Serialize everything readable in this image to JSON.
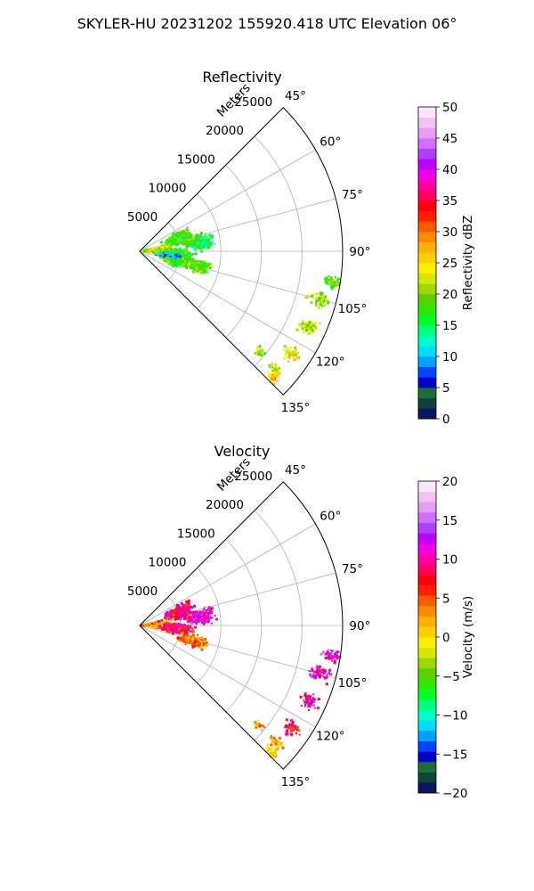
{
  "suptitle": "SKYLER-HU  20231202  155920.418 UTC Elevation 06°",
  "chart_data": [
    {
      "type": "heatmap",
      "subtype": "polar-sector-ppi",
      "title": "Reflectivity",
      "radial_axis_label": "Meters",
      "r_ticks": [
        5000,
        10000,
        15000,
        20000,
        25000
      ],
      "r_tick_labels": [
        "5000",
        "10000",
        "15000",
        "20000",
        "25000"
      ],
      "rlim": [
        0,
        25000
      ],
      "theta_ticks": [
        45,
        60,
        75,
        90,
        105,
        120,
        135
      ],
      "theta_tick_labels": [
        "45°",
        "60°",
        "75°",
        "90°",
        "105°",
        "120°",
        "135°"
      ],
      "theta_range": [
        45,
        135
      ],
      "grid": true,
      "colorbar": {
        "label": "Reflectivity dBZ",
        "range": [
          0,
          50
        ],
        "ticks": [
          0,
          5,
          10,
          15,
          20,
          25,
          30,
          35,
          40,
          45,
          50
        ],
        "tick_labels": [
          "0",
          "5",
          "10",
          "15",
          "20",
          "25",
          "30",
          "35",
          "40",
          "45",
          "50"
        ],
        "colors": [
          "#0a1660",
          "#11433a",
          "#1d6d36",
          "#0000c8",
          "#0046ff",
          "#00a2ff",
          "#00dcff",
          "#00ffc8",
          "#00ff7a",
          "#00ff22",
          "#33e600",
          "#5ad000",
          "#9ad800",
          "#d7e800",
          "#fff000",
          "#ffd000",
          "#ffb000",
          "#ff8a00",
          "#ff5a00",
          "#ff2000",
          "#ff0010",
          "#ff0060",
          "#ff00a8",
          "#ee00e8",
          "#c000ff",
          "#b040ff",
          "#cf6fff",
          "#e69ef2",
          "#f2c3f2",
          "#fbe6fb"
        ]
      },
      "echo_regions": [
        {
          "theta": 82,
          "r": 7600,
          "dtheta": 9,
          "dr": 2200,
          "value": 16
        },
        {
          "theta": 72,
          "r": 5000,
          "dtheta": 12,
          "dr": 2400,
          "value": 18
        },
        {
          "theta": 87,
          "r": 2400,
          "dtheta": 12,
          "dr": 2600,
          "value": 22
        },
        {
          "theta": 95,
          "r": 4600,
          "dtheta": 10,
          "dr": 2600,
          "value": 17
        },
        {
          "theta": 104,
          "r": 7200,
          "dtheta": 8,
          "dr": 2600,
          "value": 19
        },
        {
          "theta": 100,
          "r": 3600,
          "dtheta": 8,
          "dr": 1800,
          "value": 10
        },
        {
          "theta": 108,
          "r": 4200,
          "dtheta": 7,
          "dr": 1800,
          "value": 18
        },
        {
          "theta": 99,
          "r": 24200,
          "dtheta": 2.5,
          "dr": 1800,
          "value": 19
        },
        {
          "theta": 105,
          "r": 23000,
          "dtheta": 3,
          "dr": 1800,
          "value": 20
        },
        {
          "theta": 114,
          "r": 22800,
          "dtheta": 3,
          "dr": 1600,
          "value": 21
        },
        {
          "theta": 124,
          "r": 22600,
          "dtheta": 3,
          "dr": 1500,
          "value": 24
        },
        {
          "theta": 131,
          "r": 22200,
          "dtheta": 2.5,
          "dr": 1300,
          "value": 23
        },
        {
          "theta": 134,
          "r": 22600,
          "dtheta": 2.5,
          "dr": 1200,
          "value": 27
        },
        {
          "theta": 130,
          "r": 19200,
          "dtheta": 2,
          "dr": 900,
          "value": 21
        }
      ]
    },
    {
      "type": "heatmap",
      "subtype": "polar-sector-ppi",
      "title": "Velocity",
      "radial_axis_label": "Meters",
      "r_ticks": [
        5000,
        10000,
        15000,
        20000,
        25000
      ],
      "r_tick_labels": [
        "5000",
        "10000",
        "15000",
        "20000",
        "25000"
      ],
      "rlim": [
        0,
        25000
      ],
      "theta_ticks": [
        45,
        60,
        75,
        90,
        105,
        120,
        135
      ],
      "theta_tick_labels": [
        "45°",
        "60°",
        "75°",
        "90°",
        "105°",
        "120°",
        "135°"
      ],
      "theta_range": [
        45,
        135
      ],
      "grid": true,
      "colorbar": {
        "label": "Velocity (m/s)",
        "range": [
          -20,
          20
        ],
        "ticks": [
          -20,
          -15,
          -10,
          -5,
          0,
          5,
          10,
          15,
          20
        ],
        "tick_labels": [
          "−20",
          "−15",
          "−10",
          "−5",
          "0",
          "5",
          "10",
          "15",
          "20"
        ],
        "colors": [
          "#0a1660",
          "#11433a",
          "#1d6d36",
          "#0000c8",
          "#0046ff",
          "#00a2ff",
          "#00dcff",
          "#00ffc8",
          "#00ff7a",
          "#00ff22",
          "#33e600",
          "#5ad000",
          "#9ad800",
          "#d7e800",
          "#fff000",
          "#ffd000",
          "#ffb000",
          "#ff8a00",
          "#ff5a00",
          "#ff2000",
          "#ff0010",
          "#ff0060",
          "#ff00a8",
          "#ee00e8",
          "#c000ff",
          "#b040ff",
          "#cf6fff",
          "#e69ef2",
          "#f2c3f2",
          "#fbe6fb"
        ]
      },
      "echo_regions": [
        {
          "theta": 82,
          "r": 7600,
          "dtheta": 9,
          "dr": 2200,
          "value": 12
        },
        {
          "theta": 72,
          "r": 5200,
          "dtheta": 12,
          "dr": 2400,
          "value": 9
        },
        {
          "theta": 88,
          "r": 2400,
          "dtheta": 12,
          "dr": 2600,
          "value": 3
        },
        {
          "theta": 95,
          "r": 4600,
          "dtheta": 10,
          "dr": 2600,
          "value": 8
        },
        {
          "theta": 106,
          "r": 6800,
          "dtheta": 8,
          "dr": 2600,
          "value": 4
        },
        {
          "theta": 99,
          "r": 24200,
          "dtheta": 2.5,
          "dr": 1800,
          "value": 12
        },
        {
          "theta": 105,
          "r": 23000,
          "dtheta": 3,
          "dr": 1800,
          "value": 11
        },
        {
          "theta": 114,
          "r": 22800,
          "dtheta": 3,
          "dr": 1600,
          "value": 10
        },
        {
          "theta": 124,
          "r": 22600,
          "dtheta": 3,
          "dr": 1500,
          "value": 8
        },
        {
          "theta": 131,
          "r": 22200,
          "dtheta": 2.5,
          "dr": 1300,
          "value": 2
        },
        {
          "theta": 134,
          "r": 22600,
          "dtheta": 2.5,
          "dr": 1200,
          "value": 1
        },
        {
          "theta": 130,
          "r": 19200,
          "dtheta": 2,
          "dr": 900,
          "value": 3
        }
      ]
    }
  ]
}
